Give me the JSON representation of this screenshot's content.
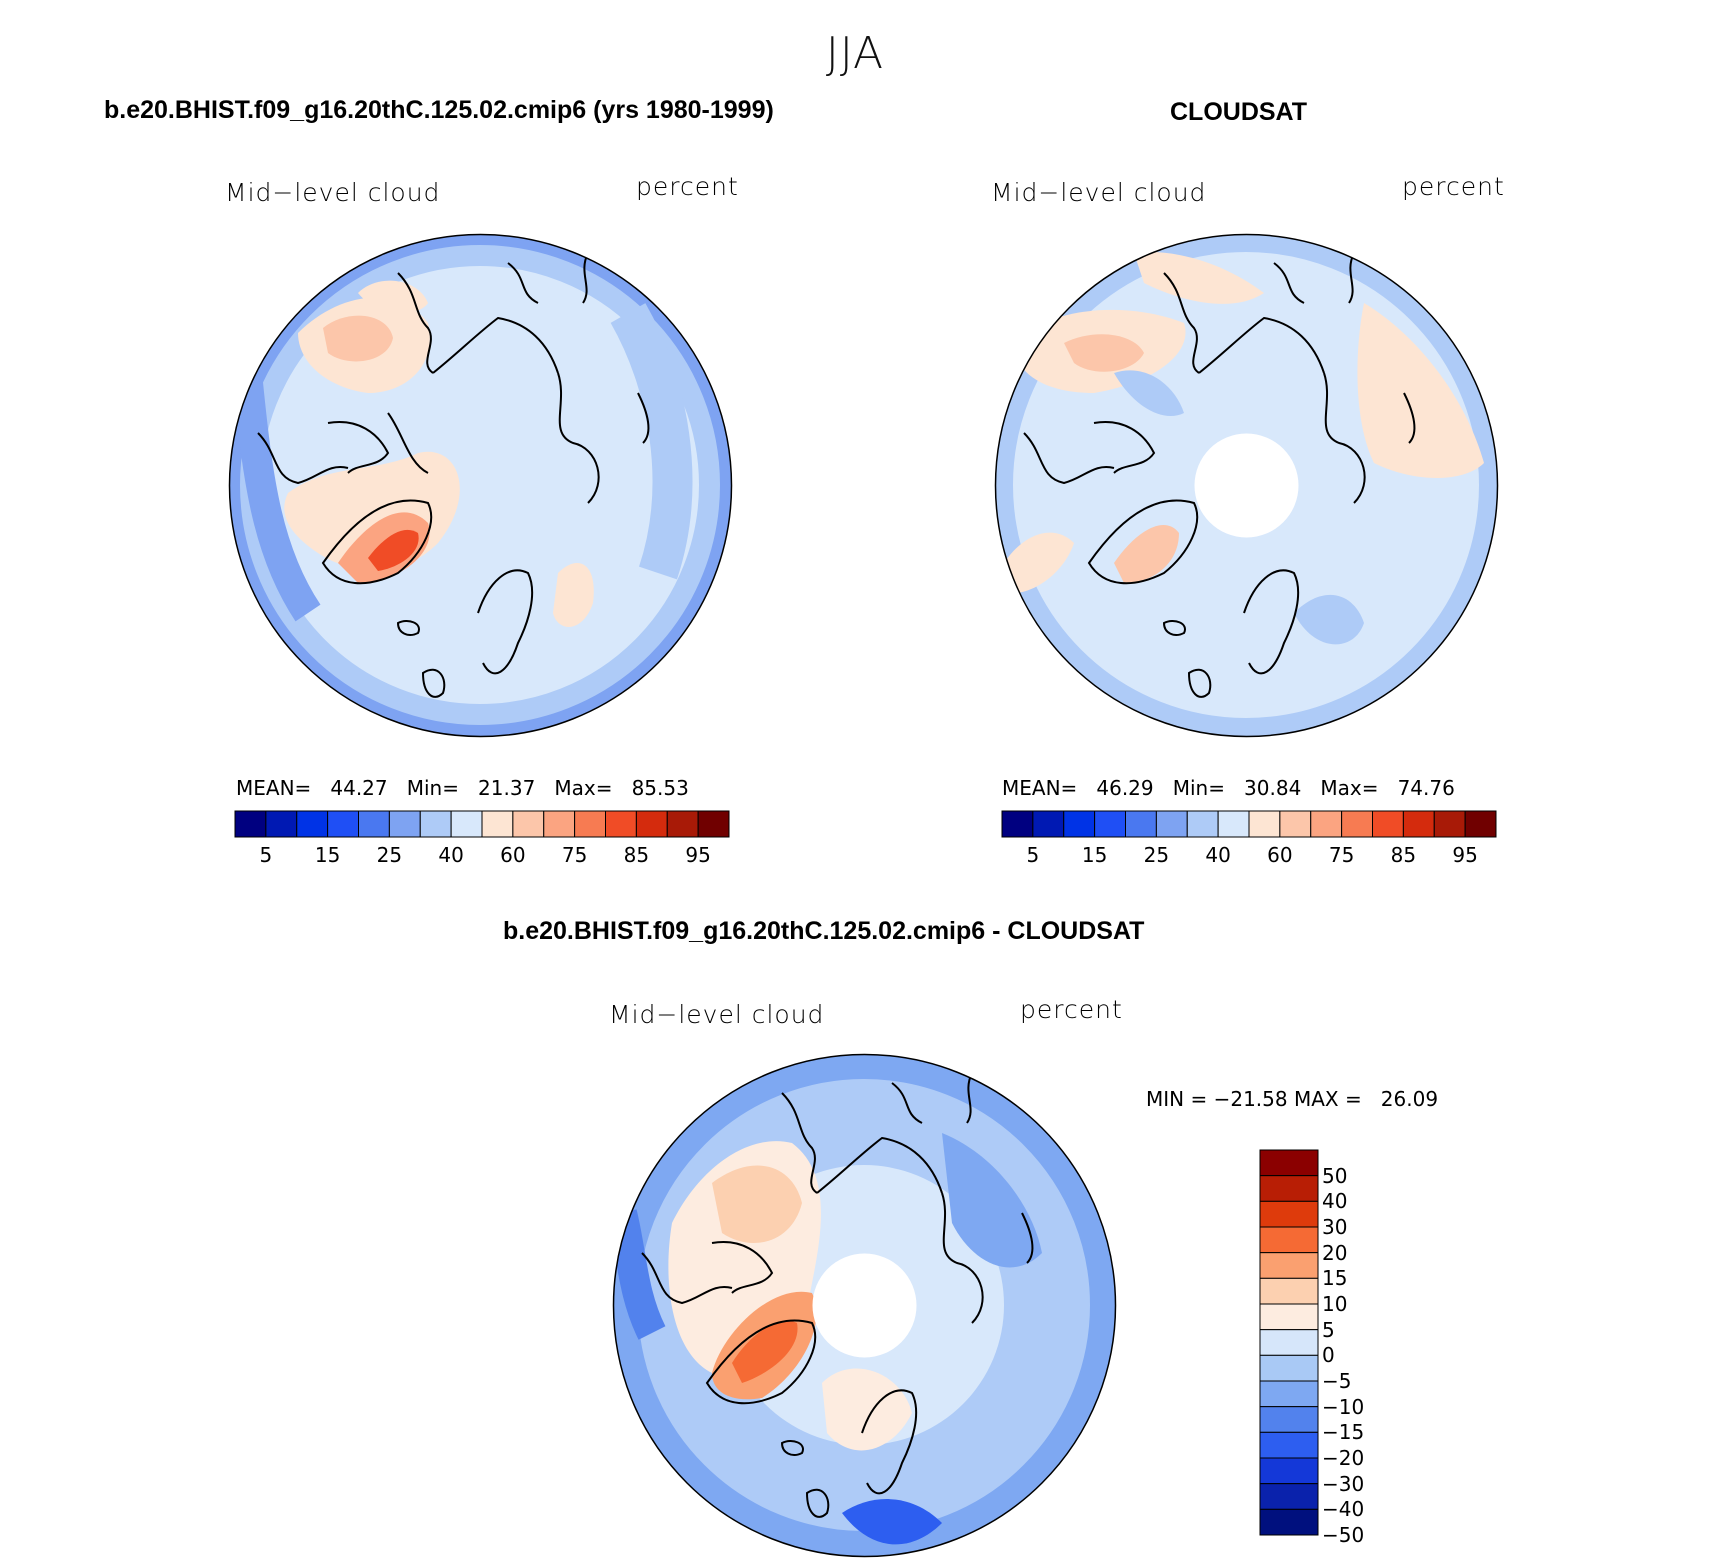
{
  "season": "JJA",
  "panels": [
    {
      "id": "model",
      "title": "b.e20.BHIST.f09_g16.20thC.125.02.cmip6 (yrs 1980-1999)",
      "variable": "Mid−level cloud",
      "units": "percent",
      "stats": {
        "mean_label": "MEAN=",
        "mean": "44.27",
        "min_label": "Min=",
        "min": "21.37",
        "max_label": "Max=",
        "max": "85.53"
      },
      "has_polar_gap": false
    },
    {
      "id": "obs",
      "title": "CLOUDSAT",
      "variable": "Mid−level cloud",
      "units": "percent",
      "stats": {
        "mean_label": "MEAN=",
        "mean": "46.29",
        "min_label": "Min=",
        "min": "30.84",
        "max_label": "Max=",
        "max": "74.76"
      },
      "has_polar_gap": true
    },
    {
      "id": "diff",
      "title": "b.e20.BHIST.f09_g16.20thC.125.02.cmip6 - CLOUDSAT",
      "variable": "Mid−level cloud",
      "units": "percent",
      "stats_line": "MIN = −21.58 MAX =   26.09",
      "has_polar_gap": true
    }
  ],
  "abs_colorbar": {
    "colors": [
      "#000080",
      "#0019b3",
      "#0033e6",
      "#1f4ff5",
      "#4a78f0",
      "#7ea3f2",
      "#aecbf7",
      "#d8e8fb",
      "#fde5d3",
      "#fcc6aa",
      "#fba481",
      "#f77b52",
      "#f04c26",
      "#d42b0d",
      "#a81a07",
      "#700000"
    ],
    "tick_labels": [
      "5",
      "15",
      "25",
      "40",
      "60",
      "75",
      "85",
      "95"
    ]
  },
  "diff_colorbar": {
    "colors_top_to_bottom": [
      "#8b0000",
      "#b81e05",
      "#de3b0c",
      "#f56a34",
      "#faa070",
      "#fcd0b0",
      "#fdece0",
      "#d6e6fa",
      "#a9c9f5",
      "#7ea8f2",
      "#5282ed",
      "#2d5ef0",
      "#1438d8",
      "#0a22ac",
      "#00107e"
    ],
    "tick_labels": [
      "50",
      "40",
      "30",
      "20",
      "15",
      "10",
      "5",
      "0",
      "−5",
      "−10",
      "−15",
      "−20",
      "−30",
      "−40",
      "−50"
    ]
  }
}
